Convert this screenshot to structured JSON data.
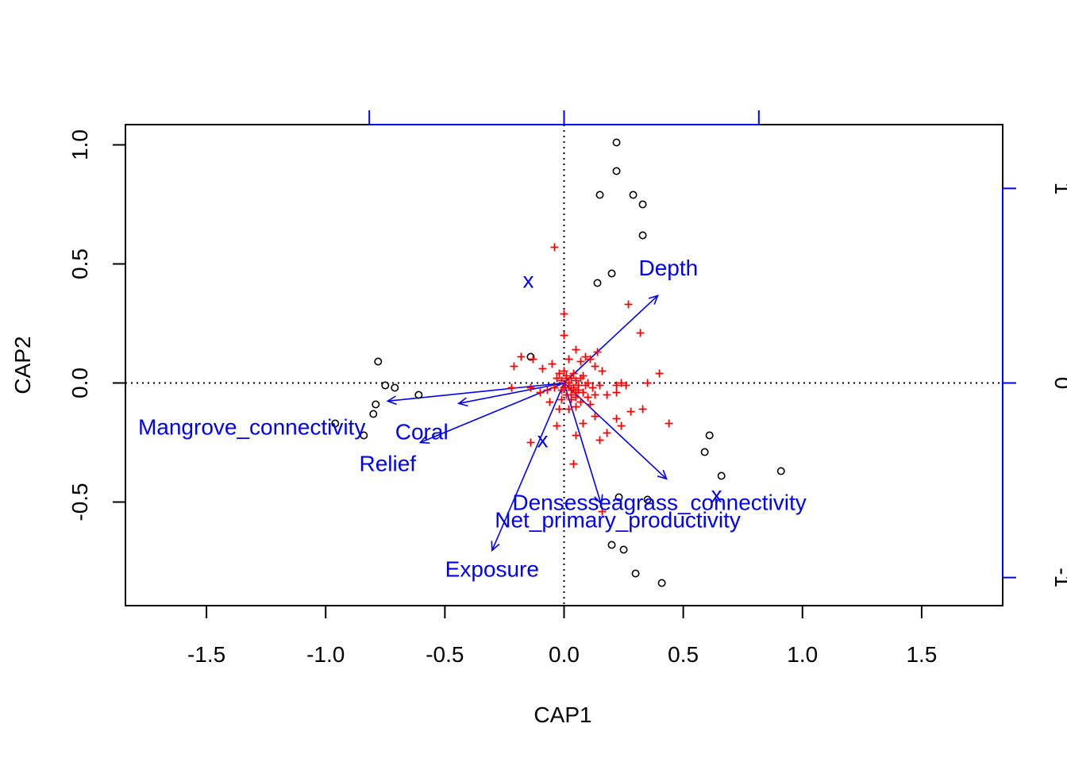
{
  "chart_data": {
    "type": "scatter",
    "title": "",
    "xlabel": "CAP1",
    "ylabel": "CAP2",
    "xlim": [
      -1.84,
      1.84
    ],
    "ylim": [
      -0.935,
      1.085
    ],
    "x_ticks": [
      {
        "value": -1.5,
        "label": "-1.5"
      },
      {
        "value": -1.0,
        "label": "-1.0"
      },
      {
        "value": -0.5,
        "label": "-0.5"
      },
      {
        "value": 0.0,
        "label": "0.0"
      },
      {
        "value": 0.5,
        "label": "0.5"
      },
      {
        "value": 1.0,
        "label": "1.0"
      },
      {
        "value": 1.5,
        "label": "1.5"
      }
    ],
    "y_ticks": [
      {
        "value": -0.5,
        "label": "-0.5"
      },
      {
        "value": 0.0,
        "label": "0.0"
      },
      {
        "value": 0.5,
        "label": "0.5"
      },
      {
        "value": 1.0,
        "label": "1.0"
      }
    ],
    "biplot_scale": 0.817,
    "right_ticks": [
      {
        "value": -1,
        "label": "-1"
      },
      {
        "value": 0,
        "label": "0"
      },
      {
        "value": 1,
        "label": "1"
      }
    ],
    "top_ticks": [
      -1,
      0,
      1
    ],
    "reference_lines": {
      "x": 0,
      "y": 0,
      "style": "dotted"
    },
    "sites": {
      "name": "Sites",
      "symbol": "open-circle",
      "color": "#000000",
      "points": [
        [
          0.22,
          1.01
        ],
        [
          0.22,
          0.89
        ],
        [
          0.15,
          0.79
        ],
        [
          0.29,
          0.79
        ],
        [
          0.33,
          0.75
        ],
        [
          0.33,
          0.62
        ],
        [
          0.2,
          0.46
        ],
        [
          0.14,
          0.42
        ],
        [
          -0.14,
          0.11
        ],
        [
          -0.78,
          0.09
        ],
        [
          -0.75,
          -0.01
        ],
        [
          -0.71,
          -0.02
        ],
        [
          -0.61,
          -0.05
        ],
        [
          -0.79,
          -0.09
        ],
        [
          -0.8,
          -0.13
        ],
        [
          -0.96,
          -0.17
        ],
        [
          -0.84,
          -0.22
        ],
        [
          0.61,
          -0.22
        ],
        [
          0.59,
          -0.29
        ],
        [
          0.66,
          -0.39
        ],
        [
          0.91,
          -0.37
        ],
        [
          0.23,
          -0.48
        ],
        [
          0.35,
          -0.49
        ],
        [
          0.2,
          -0.68
        ],
        [
          0.25,
          -0.7
        ],
        [
          0.3,
          -0.8
        ],
        [
          0.41,
          -0.84
        ]
      ]
    },
    "species": {
      "name": "Species",
      "symbol": "plus",
      "color": "#ff0000",
      "points": [
        [
          -0.04,
          0.57
        ],
        [
          0.0,
          0.29
        ],
        [
          0.27,
          0.33
        ],
        [
          0.32,
          0.21
        ],
        [
          0.0,
          0.2
        ],
        [
          0.14,
          0.13
        ],
        [
          0.05,
          0.14
        ],
        [
          -0.18,
          0.11
        ],
        [
          -0.21,
          0.07
        ],
        [
          -0.09,
          0.06
        ],
        [
          -0.13,
          0.1
        ],
        [
          -0.05,
          0.08
        ],
        [
          0.02,
          0.1
        ],
        [
          0.07,
          0.09
        ],
        [
          0.09,
          0.11
        ],
        [
          0.11,
          0.1
        ],
        [
          0.13,
          0.07
        ],
        [
          0.16,
          0.05
        ],
        [
          0.4,
          0.04
        ],
        [
          0.35,
          0.0
        ],
        [
          0.24,
          0.0
        ],
        [
          0.26,
          -0.01
        ],
        [
          0.22,
          -0.01
        ],
        [
          -0.02,
          0.04
        ],
        [
          0.01,
          0.03
        ],
        [
          0.03,
          0.02
        ],
        [
          0.05,
          0.01
        ],
        [
          -0.03,
          0.02
        ],
        [
          0.0,
          0.05
        ],
        [
          0.08,
          0.03
        ],
        [
          0.1,
          0.0
        ],
        [
          0.12,
          -0.02
        ],
        [
          0.13,
          -0.05
        ],
        [
          0.15,
          -0.01
        ],
        [
          0.18,
          -0.05
        ],
        [
          0.22,
          -0.04
        ],
        [
          0.02,
          -0.01
        ],
        [
          0.04,
          -0.02
        ],
        [
          0.06,
          -0.03
        ],
        [
          0.08,
          -0.04
        ],
        [
          0.1,
          -0.06
        ],
        [
          0.07,
          -0.08
        ],
        [
          0.05,
          -0.06
        ],
        [
          0.03,
          -0.07
        ],
        [
          0.01,
          -0.05
        ],
        [
          -0.01,
          -0.03
        ],
        [
          -0.04,
          -0.02
        ],
        [
          -0.07,
          -0.03
        ],
        [
          -0.1,
          -0.04
        ],
        [
          -0.14,
          -0.02
        ],
        [
          -0.22,
          -0.02
        ],
        [
          -0.06,
          -0.08
        ],
        [
          -0.02,
          -0.11
        ],
        [
          0.02,
          -0.11
        ],
        [
          -0.03,
          -0.18
        ],
        [
          0.05,
          -0.22
        ],
        [
          0.08,
          -0.17
        ],
        [
          0.13,
          -0.14
        ],
        [
          0.18,
          -0.21
        ],
        [
          0.15,
          -0.24
        ],
        [
          0.22,
          -0.15
        ],
        [
          0.24,
          -0.18
        ],
        [
          0.28,
          -0.12
        ],
        [
          0.33,
          -0.11
        ],
        [
          0.44,
          -0.17
        ],
        [
          -0.14,
          -0.25
        ],
        [
          0.04,
          -0.34
        ],
        [
          0.16,
          -0.54
        ],
        [
          0.03,
          -0.05
        ],
        [
          0.05,
          -0.1
        ],
        [
          0.02,
          0.0
        ],
        [
          0.04,
          0.04
        ],
        [
          0.09,
          -0.01
        ],
        [
          0.06,
          -0.01
        ],
        [
          -0.01,
          0.01
        ],
        [
          0.0,
          -0.02
        ],
        [
          0.01,
          0.02
        ],
        [
          0.03,
          -0.03
        ],
        [
          0.07,
          0.02
        ],
        [
          0.11,
          -0.09
        ],
        [
          0.05,
          -0.04
        ],
        [
          -0.01,
          -0.07
        ]
      ]
    },
    "centroids": {
      "name": "Factor centroids",
      "symbol": "x",
      "color": "#0000ff",
      "points": [
        [
          -0.15,
          0.43
        ],
        [
          -0.09,
          -0.24
        ],
        [
          0.64,
          -0.47
        ]
      ]
    },
    "biplot_arrows": [
      {
        "name": "Depth",
        "x": 0.393,
        "y": 0.367,
        "label_anchor": "start",
        "label_dx": -0.08,
        "label_dy": 0.085
      },
      {
        "name": "Mangrove_connectivity",
        "x": -0.74,
        "y": -0.076,
        "label_anchor": "middle",
        "label_dx": -0.57,
        "label_dy": -0.14
      },
      {
        "name": "Coral",
        "x": -0.442,
        "y": -0.086,
        "label_anchor": "middle",
        "label_dx": -0.155,
        "label_dy": -0.15
      },
      {
        "name": "Relief",
        "x": -0.603,
        "y": -0.25,
        "label_anchor": "middle",
        "label_dx": -0.137,
        "label_dy": -0.12
      },
      {
        "name": "Densesseagrass_connectivity",
        "x": 0.43,
        "y": -0.403,
        "label_anchor": "middle",
        "label_dx": -0.03,
        "label_dy": -0.13
      },
      {
        "name": "Net_primary_productivity",
        "x": 0.155,
        "y": -0.507,
        "label_anchor": "middle",
        "label_dx": 0.07,
        "label_dy": -0.1
      },
      {
        "name": "Exposure",
        "x": -0.302,
        "y": -0.703,
        "label_anchor": "middle",
        "label_dx": 0.0,
        "label_dy": -0.11
      }
    ]
  }
}
